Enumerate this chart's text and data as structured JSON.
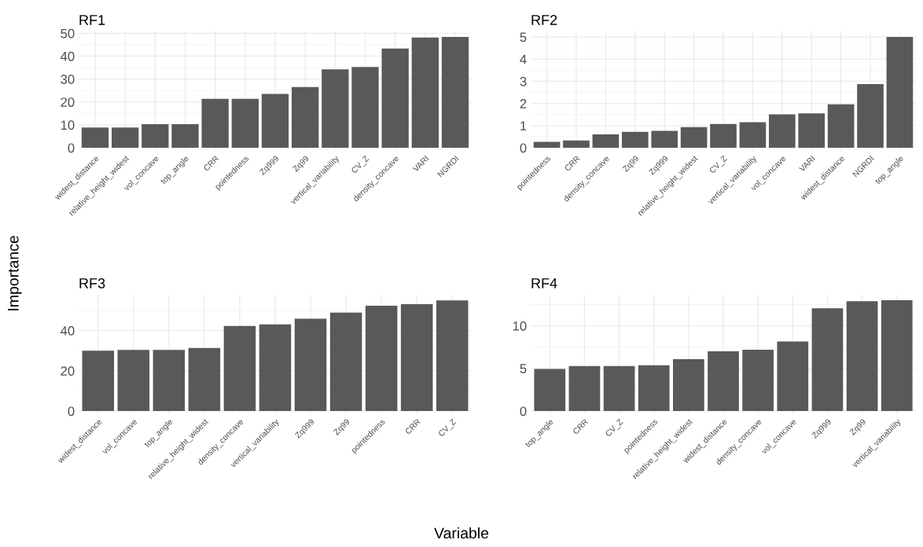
{
  "chart_data": [
    {
      "type": "bar",
      "title": "RF1",
      "xlabel": "Variable",
      "ylabel": "Importance",
      "color": "#595959",
      "grid": true,
      "categories": [
        "widest_distance",
        "relative_height_widest",
        "vol_concave",
        "top_angle",
        "CRR",
        "pointedness",
        "Zq999",
        "Zq99",
        "vertical_variability",
        "CV_Z",
        "density_concave",
        "VARI",
        "NGRDI"
      ],
      "values": [
        8.8,
        8.8,
        10.3,
        10.3,
        21.4,
        21.4,
        23.5,
        26.5,
        34.2,
        35.3,
        43.3,
        48.1,
        48.4
      ],
      "ylim": [
        0,
        50.8
      ],
      "yticks": [
        0,
        10,
        20,
        30,
        40,
        50
      ]
    },
    {
      "type": "bar",
      "title": "RF2",
      "color": "#595959",
      "grid": true,
      "categories": [
        "pointedness",
        "CRR",
        "density_concave",
        "Zq99",
        "Zq999",
        "relative_height_widest",
        "CV_Z",
        "vertical_variability",
        "vol_concave",
        "VARI",
        "widest_distance",
        "NGRDI",
        "top_angle"
      ],
      "values": [
        0.27,
        0.33,
        0.6,
        0.72,
        0.76,
        0.93,
        1.07,
        1.15,
        1.51,
        1.55,
        1.96,
        2.87,
        5.0
      ],
      "ylim": [
        0,
        5.25
      ],
      "yticks": [
        0,
        1,
        2,
        3,
        4,
        5
      ]
    },
    {
      "type": "bar",
      "title": "RF3",
      "color": "#595959",
      "grid": true,
      "categories": [
        "widest_distance",
        "vol_concave",
        "top_angle",
        "relative_height_widest",
        "density_concave",
        "vertical_variability",
        "Zq999",
        "Zq99",
        "pointedness",
        "CRR",
        "CV_Z"
      ],
      "values": [
        30.0,
        30.4,
        30.4,
        31.3,
        42.3,
        43.1,
        45.9,
        48.9,
        52.3,
        53.1,
        55.0
      ],
      "ylim": [
        0,
        57.8
      ],
      "yticks": [
        0,
        20,
        40
      ]
    },
    {
      "type": "bar",
      "title": "RF4",
      "color": "#595959",
      "grid": true,
      "categories": [
        "top_angle",
        "CRR",
        "CV_Z",
        "pointedness",
        "relative_height_widest",
        "widest_distance",
        "density_concave",
        "vol_concave",
        "Zq999",
        "Zq99",
        "vertical_variability"
      ],
      "values": [
        4.93,
        5.27,
        5.27,
        5.37,
        6.09,
        7.0,
        7.2,
        8.16,
        12.07,
        12.9,
        13.0
      ],
      "ylim": [
        0,
        13.65
      ],
      "yticks": [
        0,
        5,
        10
      ]
    }
  ]
}
